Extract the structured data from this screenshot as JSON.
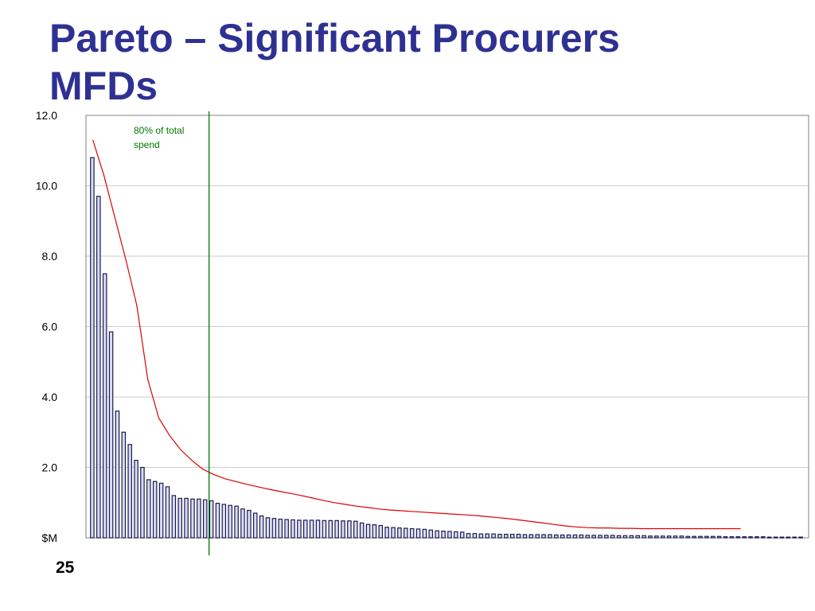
{
  "slide": {
    "title_line1": "Pareto – Significant Procurers",
    "title_line2": "MFDs",
    "page_number": "25"
  },
  "colors": {
    "title": "#2e3192",
    "bar_fill": "#d9dcf5",
    "bar_stroke": "#1a1a4e",
    "curve": "#dd0000",
    "marker_line": "#007700",
    "gridline": "#cccccc"
  },
  "chart_data": {
    "type": "bar",
    "title": "",
    "xlabel": "",
    "ylabel": "",
    "ylim": [
      0,
      12
    ],
    "y_ticks": [
      {
        "value": 0,
        "label": "$M"
      },
      {
        "value": 2,
        "label": "2.0"
      },
      {
        "value": 4,
        "label": "4.0"
      },
      {
        "value": 6,
        "label": "6.0"
      },
      {
        "value": 8,
        "label": "8.0"
      },
      {
        "value": 10,
        "label": "10.0"
      },
      {
        "value": 12,
        "label": "12.0"
      }
    ],
    "grid": true,
    "values": [
      10.8,
      9.7,
      7.5,
      5.85,
      3.6,
      3.0,
      2.65,
      2.2,
      2.0,
      1.65,
      1.6,
      1.55,
      1.45,
      1.2,
      1.12,
      1.12,
      1.1,
      1.1,
      1.08,
      1.05,
      0.98,
      0.95,
      0.92,
      0.9,
      0.82,
      0.78,
      0.7,
      0.62,
      0.57,
      0.55,
      0.53,
      0.52,
      0.51,
      0.5,
      0.5,
      0.5,
      0.5,
      0.49,
      0.49,
      0.49,
      0.48,
      0.48,
      0.47,
      0.42,
      0.38,
      0.37,
      0.35,
      0.3,
      0.29,
      0.28,
      0.27,
      0.26,
      0.25,
      0.24,
      0.22,
      0.2,
      0.19,
      0.18,
      0.17,
      0.16,
      0.12,
      0.12,
      0.11,
      0.11,
      0.11,
      0.1,
      0.1,
      0.1,
      0.1,
      0.09,
      0.09,
      0.09,
      0.09,
      0.09,
      0.08,
      0.08,
      0.08,
      0.08,
      0.08,
      0.07,
      0.07,
      0.07,
      0.07,
      0.07,
      0.06,
      0.06,
      0.06,
      0.06,
      0.06,
      0.05,
      0.05,
      0.05,
      0.05,
      0.05,
      0.05,
      0.04,
      0.04,
      0.04,
      0.04,
      0.04,
      0.04,
      0.03,
      0.03,
      0.03,
      0.03,
      0.03,
      0.03,
      0.03,
      0.02,
      0.02,
      0.02,
      0.02,
      0.02,
      0.02
    ],
    "trend_curve": [
      11.3,
      10.3,
      9.1,
      7.9,
      6.6,
      4.5,
      3.4,
      2.9,
      2.5,
      2.2,
      1.95,
      1.8,
      1.68,
      1.6,
      1.52,
      1.45,
      1.38,
      1.32,
      1.26,
      1.2,
      1.13,
      1.06,
      1.0,
      0.95,
      0.9,
      0.86,
      0.82,
      0.79,
      0.77,
      0.75,
      0.73,
      0.71,
      0.69,
      0.67,
      0.65,
      0.63,
      0.6,
      0.57,
      0.54,
      0.5,
      0.46,
      0.42,
      0.38,
      0.34,
      0.31,
      0.29,
      0.28,
      0.28,
      0.27,
      0.27,
      0.26,
      0.26,
      0.26,
      0.26,
      0.26,
      0.26,
      0.26,
      0.26,
      0.26,
      0.26
    ],
    "marker_after_bar": 19,
    "annotation": {
      "line1": "80% of total",
      "line2": "spend"
    }
  }
}
